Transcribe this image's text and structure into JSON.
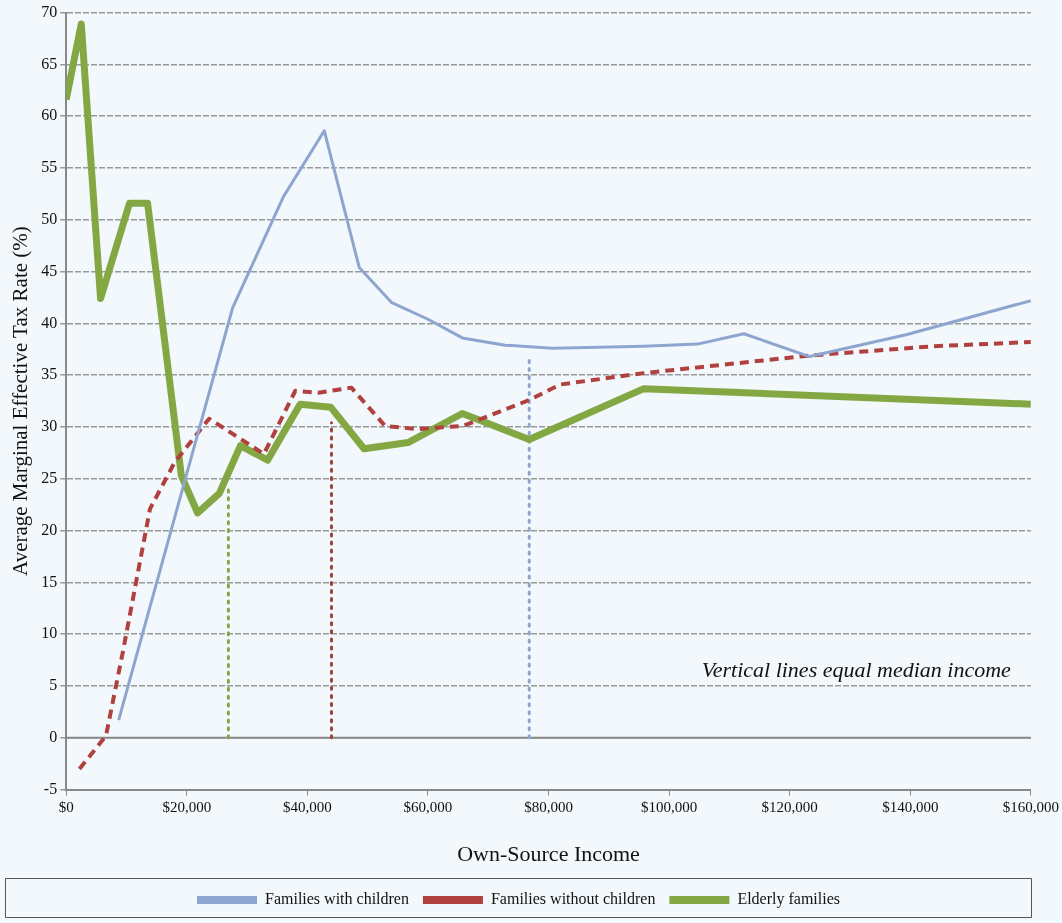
{
  "chart_data": {
    "type": "line",
    "xlabel": "Own-Source Income",
    "ylabel": "Average Marginal Effective Tax Rate (%)",
    "xlim": [
      0,
      160000
    ],
    "xticks": [
      {
        "value": 0,
        "label": "$0"
      },
      {
        "value": 20000,
        "label": "$20,000"
      },
      {
        "value": 40000,
        "label": "$40,000"
      },
      {
        "value": 60000,
        "label": "$60,000"
      },
      {
        "value": 80000,
        "label": "$80,000"
      },
      {
        "value": 100000,
        "label": "$100,000"
      },
      {
        "value": 120000,
        "label": "$120,000"
      },
      {
        "value": 140000,
        "label": "$140,000"
      },
      {
        "value": 160000,
        "label": "$160,000"
      }
    ],
    "ylim": [
      -5,
      70
    ],
    "yticks": [
      -5,
      0,
      5,
      10,
      15,
      20,
      25,
      30,
      35,
      40,
      45,
      50,
      55,
      60,
      65,
      70
    ],
    "grid": "y",
    "legend": "bottom",
    "marker": "none",
    "annotations": [
      "Vertical lines equal median income"
    ],
    "ref_lines": [
      {
        "axis": "y",
        "value": 0,
        "color": "#888888",
        "line_style": "solid"
      }
    ],
    "series": [
      {
        "name": "Families with children",
        "color": "#8ea5cf",
        "line_style": "solid",
        "x": [
          8700,
          27600,
          36000,
          42800,
          48600,
          54000,
          60000,
          65700,
          72800,
          80600,
          95800,
          104700,
          112400,
          123300,
          139300,
          160000
        ],
        "values": [
          1.7,
          41.5,
          52.2,
          58.6,
          45.4,
          42,
          40.4,
          38.6,
          37.9,
          37.6,
          37.8,
          38,
          39,
          36.8,
          38.9,
          42.2
        ]
      },
      {
        "name": "Families without children",
        "color": "#b0413e",
        "line_style": "dashed",
        "x": [
          2200,
          6600,
          9400,
          13900,
          18000,
          23700,
          32800,
          38000,
          41800,
          47300,
          52900,
          58200,
          65800,
          76800,
          81900,
          95800,
          123300,
          144000,
          160000
        ],
        "values": [
          -3,
          0.2,
          8.3,
          22.1,
          26.6,
          30.8,
          27.4,
          33.5,
          33.3,
          33.8,
          30.1,
          29.8,
          30.1,
          32.6,
          34.1,
          35.2,
          36.9,
          37.8,
          38.2
        ]
      },
      {
        "name": "Elderly families",
        "color": "#83a843",
        "line_style": "solid",
        "x": [
          0,
          2500,
          5700,
          10500,
          13500,
          19100,
          21800,
          25400,
          28900,
          33400,
          38800,
          43900,
          49400,
          56700,
          65700,
          76800,
          95800,
          160000
        ],
        "values": [
          61.6,
          68.9,
          42.4,
          51.6,
          51.6,
          25.3,
          21.7,
          23.6,
          28.2,
          26.8,
          32.2,
          31.9,
          27.9,
          28.5,
          31.3,
          28.8,
          33.7,
          32.2
        ]
      },
      {
        "color": "#83a843",
        "line_style": "dotted",
        "x": [
          26900,
          26900
        ],
        "values": [
          0,
          24.5
        ]
      },
      {
        "color": "#a0413e",
        "line_style": "dotted",
        "x": [
          44000,
          44000
        ],
        "values": [
          0,
          30.4
        ]
      },
      {
        "color": "#8ea5cf",
        "line_style": "dotted",
        "x": [
          76800,
          76800
        ],
        "values": [
          0,
          37
        ]
      }
    ]
  }
}
